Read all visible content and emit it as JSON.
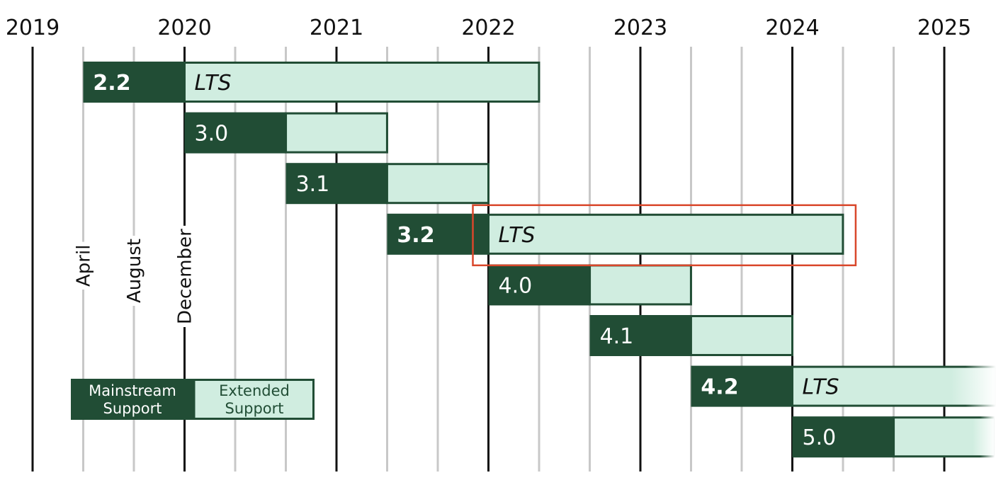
{
  "chart_data": {
    "type": "timeline",
    "title": "",
    "x_axis": {
      "years": [
        "2019",
        "2020",
        "2021",
        "2022",
        "2023",
        "2024",
        "2025"
      ],
      "year_values": [
        2019,
        2020,
        2021,
        2022,
        2023,
        2024,
        2025
      ],
      "range": [
        2018.95,
        2025.35
      ],
      "minor_grid_interval_months": 4
    },
    "month_markers": [
      {
        "label": "April",
        "value": 2019.333
      },
      {
        "label": "August",
        "value": 2019.667
      },
      {
        "label": "December",
        "value": 2020.0
      }
    ],
    "releases": [
      {
        "version": "2.2",
        "lts": true,
        "lts_label": "LTS",
        "start": 2019.333,
        "mainstream_end": 2020.0,
        "extended_end": 2022.333
      },
      {
        "version": "3.0",
        "lts": false,
        "lts_label": "",
        "start": 2020.0,
        "mainstream_end": 2020.667,
        "extended_end": 2021.333
      },
      {
        "version": "3.1",
        "lts": false,
        "lts_label": "",
        "start": 2020.667,
        "mainstream_end": 2021.333,
        "extended_end": 2022.0
      },
      {
        "version": "3.2",
        "lts": true,
        "lts_label": "LTS",
        "start": 2021.333,
        "mainstream_end": 2022.0,
        "extended_end": 2024.333
      },
      {
        "version": "4.0",
        "lts": false,
        "lts_label": "",
        "start": 2022.0,
        "mainstream_end": 2022.667,
        "extended_end": 2023.333
      },
      {
        "version": "4.1",
        "lts": false,
        "lts_label": "",
        "start": 2022.667,
        "mainstream_end": 2023.333,
        "extended_end": 2024.0
      },
      {
        "version": "4.2",
        "lts": true,
        "lts_label": "LTS",
        "start": 2023.333,
        "mainstream_end": 2024.0,
        "extended_end": 2025.35,
        "extended_fades": true
      },
      {
        "version": "5.0",
        "lts": false,
        "lts_label": "",
        "start": 2024.0,
        "mainstream_end": 2024.667,
        "extended_end": 2025.333,
        "extended_fades": true
      }
    ],
    "legend": {
      "mainstream_lines": [
        "Mainstream",
        "Support"
      ],
      "extended_lines": [
        "Extended",
        "Support"
      ]
    },
    "highlight": {
      "release": "3.2",
      "segment": "extended",
      "color": "#d9472b"
    },
    "colors": {
      "mainstream": "#214d35",
      "extended": "#d0ede0",
      "major_grid": "#111111",
      "minor_grid": "#c8c8c8",
      "highlight": "#d9472b"
    }
  }
}
